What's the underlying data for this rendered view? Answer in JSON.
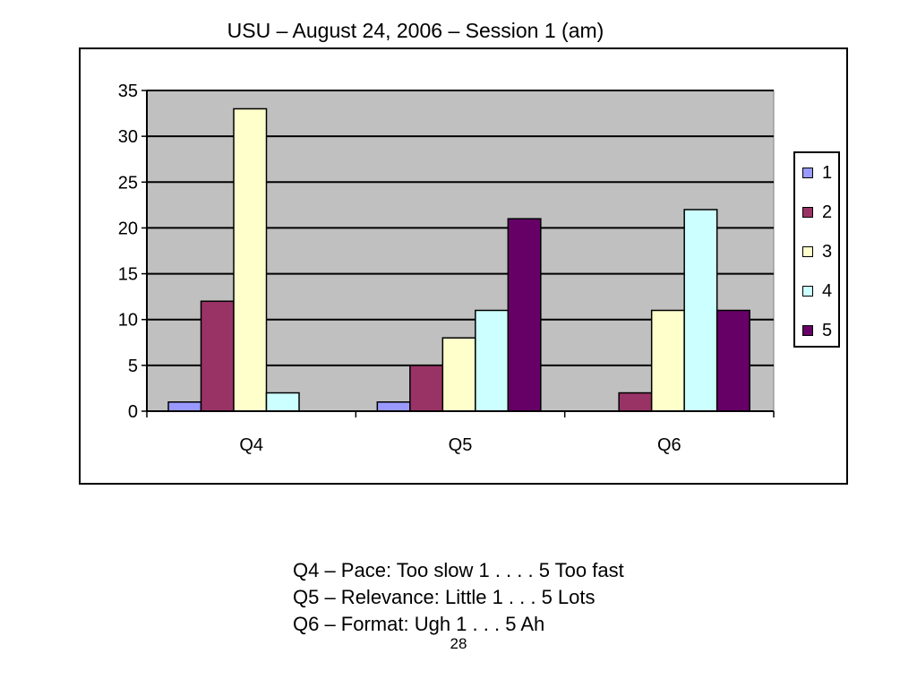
{
  "slide": {
    "title": "USU – August 24, 2006 – Session 1 (am)",
    "notes": [
      "Q4 – Pace: Too slow 1 . . . . 5 Too fast",
      "Q5 – Relevance: Little 1 . . . 5 Lots",
      "Q6 – Format: Ugh 1 . . . 5 Ah"
    ],
    "page_number": "28"
  },
  "chart_data": {
    "type": "bar",
    "categories": [
      "Q4",
      "Q5",
      "Q6"
    ],
    "series": [
      {
        "name": "1",
        "color": "#9999ff",
        "values": [
          1,
          1,
          0
        ]
      },
      {
        "name": "2",
        "color": "#993366",
        "values": [
          12,
          5,
          2
        ]
      },
      {
        "name": "3",
        "color": "#ffffcc",
        "values": [
          33,
          8,
          11
        ]
      },
      {
        "name": "4",
        "color": "#ccffff",
        "values": [
          2,
          11,
          22
        ]
      },
      {
        "name": "5",
        "color": "#660066",
        "values": [
          0,
          21,
          11
        ]
      }
    ],
    "ylim": [
      0,
      35
    ],
    "yticks": [
      "0",
      "5",
      "10",
      "15",
      "20",
      "25",
      "30",
      "35"
    ],
    "ytick_values": [
      0,
      5,
      10,
      15,
      20,
      25,
      30,
      35
    ],
    "plot_background": "#c0c0c0",
    "grid": true,
    "legend_position": "right"
  }
}
